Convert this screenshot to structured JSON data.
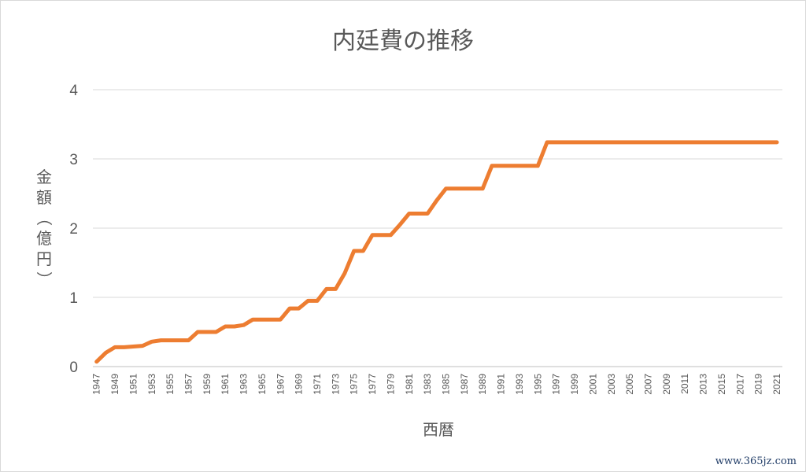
{
  "chart_data": {
    "type": "line",
    "title": "内廷費の推移",
    "xlabel": "西暦",
    "ylabel_chars": [
      "金",
      "額",
      "（",
      "億",
      "円",
      "）"
    ],
    "ylim": [
      0,
      4
    ],
    "yticks": [
      "0",
      "1",
      "2",
      "3",
      "4"
    ],
    "grid": true,
    "legend": "none",
    "series_color": "#ED7D31",
    "x_tick_labels": [
      "1947",
      "1949",
      "1951",
      "1953",
      "1955",
      "1957",
      "1959",
      "1961",
      "1963",
      "1965",
      "1967",
      "1969",
      "1971",
      "1973",
      "1975",
      "1977",
      "1979",
      "1981",
      "1983",
      "1985",
      "1987",
      "1989",
      "1991",
      "1993",
      "1995",
      "1997",
      "1999",
      "2001",
      "2003",
      "2005",
      "2007",
      "2009",
      "2011",
      "2013",
      "2015",
      "2017",
      "2019",
      "2021"
    ],
    "series": [
      {
        "x": [
          1947,
          1948,
          1949,
          1950,
          1951,
          1952,
          1953,
          1954,
          1955,
          1956,
          1957,
          1958,
          1959,
          1960,
          1961,
          1962,
          1963,
          1964,
          1965,
          1966,
          1967,
          1968,
          1969,
          1970,
          1971,
          1972,
          1973,
          1974,
          1975,
          1976,
          1977,
          1978,
          1979,
          1980,
          1981,
          1982,
          1983,
          1984,
          1985,
          1986,
          1987,
          1988,
          1989,
          1990,
          1991,
          1992,
          1993,
          1994,
          1995,
          1996,
          1997,
          1998,
          1999,
          2000,
          2001,
          2002,
          2003,
          2004,
          2005,
          2006,
          2007,
          2008,
          2009,
          2010,
          2011,
          2012,
          2013,
          2014,
          2015,
          2016,
          2017,
          2018,
          2019,
          2020,
          2021
        ],
        "values": [
          0.07,
          0.2,
          0.28,
          0.28,
          0.29,
          0.3,
          0.36,
          0.38,
          0.38,
          0.38,
          0.38,
          0.5,
          0.5,
          0.5,
          0.58,
          0.58,
          0.6,
          0.68,
          0.68,
          0.68,
          0.68,
          0.84,
          0.84,
          0.95,
          0.95,
          1.12,
          1.12,
          1.35,
          1.67,
          1.67,
          1.9,
          1.9,
          1.9,
          2.05,
          2.21,
          2.21,
          2.21,
          2.4,
          2.57,
          2.57,
          2.57,
          2.57,
          2.57,
          2.9,
          2.9,
          2.9,
          2.9,
          2.9,
          2.9,
          3.24,
          3.24,
          3.24,
          3.24,
          3.24,
          3.24,
          3.24,
          3.24,
          3.24,
          3.24,
          3.24,
          3.24,
          3.24,
          3.24,
          3.24,
          3.24,
          3.24,
          3.24,
          3.24,
          3.24,
          3.24,
          3.24,
          3.24,
          3.24,
          3.24,
          3.24
        ]
      }
    ]
  },
  "watermark": "www.365jz.com"
}
